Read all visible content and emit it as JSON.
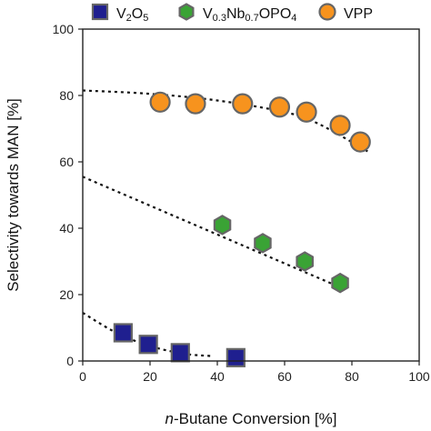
{
  "chart_data": {
    "type": "scatter",
    "xlabel_italic": "n",
    "xlabel_rest": "-Butane Conversion [%]",
    "ylabel": "Selectivity towards MAN [%]",
    "xlim": [
      0,
      100
    ],
    "ylim": [
      0,
      100
    ],
    "x_ticks": [
      "0",
      "20",
      "40",
      "60",
      "80",
      "100"
    ],
    "y_ticks": [
      "0",
      "20",
      "40",
      "60",
      "80",
      "100"
    ],
    "grid": false,
    "legend_position": "top",
    "series": [
      {
        "name": "V2O5",
        "name_parts": [
          [
            "V",
            ""
          ],
          [
            "2",
            "sub"
          ],
          [
            "O",
            ""
          ],
          [
            "5",
            "sub"
          ]
        ],
        "marker": "square",
        "color": "#1f1f8f",
        "edge": "#666666",
        "points": [
          [
            12,
            8.5
          ],
          [
            19.5,
            5.0
          ],
          [
            29,
            2.5
          ],
          [
            45.5,
            1.0
          ]
        ],
        "fit": [
          [
            0,
            14.5
          ],
          [
            10,
            8.5
          ],
          [
            20,
            4.5
          ],
          [
            30,
            2.2
          ],
          [
            38,
            1.5
          ]
        ]
      },
      {
        "name": "V0.3Nb0.7OPO4",
        "name_parts": [
          [
            "V",
            ""
          ],
          [
            "0.3",
            "sub"
          ],
          [
            "Nb",
            ""
          ],
          [
            "0.7",
            "sub"
          ],
          [
            "OPO",
            ""
          ],
          [
            "4",
            "sub"
          ]
        ],
        "marker": "hexagon",
        "color": "#3aa335",
        "edge": "#666666",
        "points": [
          [
            41.5,
            41
          ],
          [
            53.5,
            35.5
          ],
          [
            66,
            30
          ],
          [
            76.5,
            23.5
          ]
        ],
        "fit": [
          [
            0,
            55.5
          ],
          [
            77,
            22
          ]
        ]
      },
      {
        "name": "VPP",
        "name_parts": [
          [
            "VPP",
            ""
          ]
        ],
        "marker": "circle",
        "color": "#f7931e",
        "edge": "#666666",
        "points": [
          [
            23,
            78
          ],
          [
            33.5,
            77.5
          ],
          [
            47.5,
            77.5
          ],
          [
            58.5,
            76.5
          ],
          [
            66.5,
            75
          ],
          [
            76.5,
            71
          ],
          [
            82.5,
            66
          ]
        ],
        "fit": [
          [
            0,
            81.5
          ],
          [
            20,
            80.5
          ],
          [
            40,
            78.5
          ],
          [
            60,
            75
          ],
          [
            70,
            71.5
          ],
          [
            85,
            63
          ]
        ]
      }
    ]
  }
}
